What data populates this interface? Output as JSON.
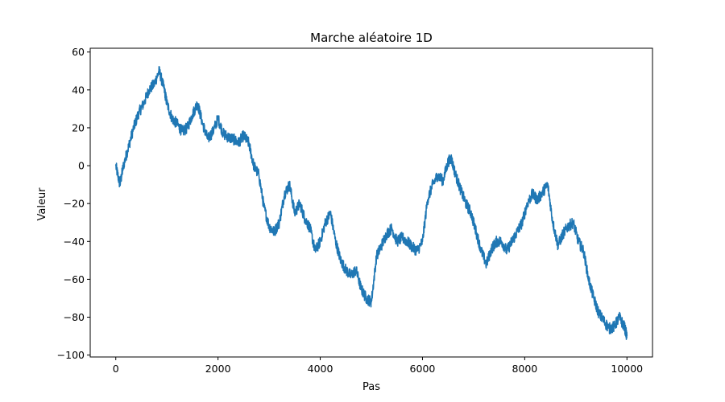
{
  "chart_data": {
    "type": "line",
    "title": "Marche aléatoire 1D",
    "xlabel": "Pas",
    "ylabel": "Valeur",
    "xlim": [
      -500,
      10500
    ],
    "ylim": [
      -101,
      62
    ],
    "xticks": [
      0,
      2000,
      4000,
      6000,
      8000,
      10000
    ],
    "yticks": [
      -100,
      -80,
      -60,
      -40,
      -20,
      0,
      20,
      40,
      60
    ],
    "xtick_labels": [
      "0",
      "2000",
      "4000",
      "6000",
      "8000",
      "10000"
    ],
    "ytick_labels": [
      "−100",
      "−80",
      "−60",
      "−40",
      "−20",
      "0",
      "20",
      "40",
      "60"
    ],
    "grid": false,
    "series": [
      {
        "color": "#1f77b4",
        "x": [
          0,
          80,
          150,
          250,
          350,
          450,
          550,
          650,
          750,
          850,
          950,
          1000,
          1100,
          1200,
          1300,
          1400,
          1500,
          1600,
          1700,
          1800,
          1900,
          2000,
          2100,
          2200,
          2300,
          2400,
          2500,
          2600,
          2700,
          2800,
          2900,
          3000,
          3100,
          3200,
          3300,
          3400,
          3500,
          3600,
          3700,
          3800,
          3900,
          4000,
          4100,
          4200,
          4300,
          4400,
          4500,
          4600,
          4700,
          4800,
          4900,
          5000,
          5100,
          5200,
          5300,
          5400,
          5500,
          5600,
          5700,
          5800,
          5900,
          6000,
          6100,
          6200,
          6300,
          6400,
          6500,
          6560,
          6650,
          6750,
          6850,
          6950,
          7050,
          7150,
          7250,
          7350,
          7450,
          7550,
          7650,
          7750,
          7850,
          7950,
          8050,
          8150,
          8250,
          8350,
          8450,
          8550,
          8650,
          8750,
          8850,
          8950,
          9050,
          9150,
          9250,
          9350,
          9450,
          9550,
          9650,
          9750,
          9850,
          9950,
          10000
        ],
        "y": [
          0,
          -10,
          0,
          10,
          20,
          28,
          33,
          40,
          43,
          50,
          40,
          33,
          25,
          22,
          18,
          20,
          27,
          33,
          22,
          14,
          18,
          25,
          17,
          15,
          14,
          12,
          16,
          12,
          0,
          -5,
          -22,
          -32,
          -35,
          -30,
          -15,
          -10,
          -25,
          -20,
          -28,
          -33,
          -45,
          -40,
          -30,
          -25,
          -40,
          -50,
          -55,
          -58,
          -55,
          -65,
          -70,
          -72,
          -48,
          -42,
          -36,
          -33,
          -40,
          -38,
          -40,
          -43,
          -45,
          -40,
          -18,
          -10,
          -5,
          -8,
          2,
          4,
          -5,
          -13,
          -20,
          -25,
          -35,
          -45,
          -52,
          -44,
          -40,
          -40,
          -45,
          -40,
          -35,
          -30,
          -20,
          -15,
          -18,
          -14,
          -10,
          -30,
          -42,
          -36,
          -32,
          -30,
          -40,
          -45,
          -60,
          -70,
          -78,
          -82,
          -86,
          -85,
          -80,
          -85,
          -90
        ]
      }
    ]
  }
}
